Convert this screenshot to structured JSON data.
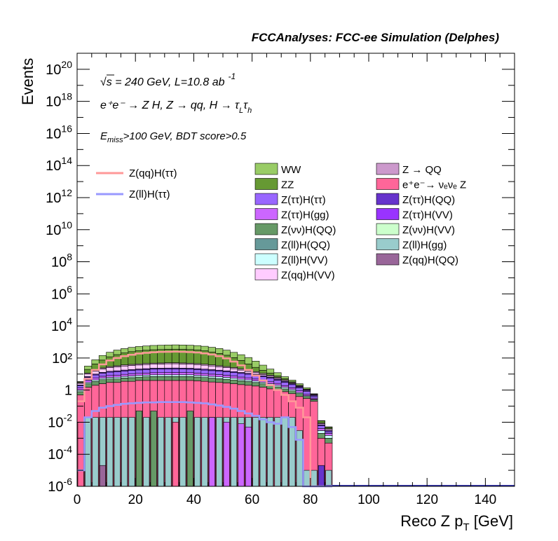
{
  "header": {
    "title": "FCCAnalyses: FCC-ee Simulation (Delphes)"
  },
  "annotations": {
    "energy_line": "√s = 240 GeV, L=10.8 ab",
    "energy_sup": "-1",
    "process_line": "e⁺e⁻ → Z H, Z → qq, H → τ",
    "process_sub_l": "L",
    "process_tau": "τ",
    "process_sub_h": "h",
    "cut_e": "E",
    "cut_sub": "miss",
    "cut_rest": ">100 GeV, BDT score>0.5"
  },
  "chart_data": {
    "type": "area",
    "title": "FCCAnalyses: FCC-ee Simulation (Delphes)",
    "xlabel_main": "Reco Z p",
    "xlabel_sub": "T",
    "xlabel_unit": " [GeV]",
    "ylabel": "Events",
    "xlim": [
      0,
      150
    ],
    "ylim": [
      1e-06,
      1e+21
    ],
    "yscale": "log",
    "grid": false,
    "legend_placement": "upper-right",
    "bin_width": 2.5,
    "x_ticks": [
      "0",
      "20",
      "40",
      "60",
      "80",
      "100",
      "120",
      "140"
    ],
    "y_tick_exponents": [
      "-6",
      "-4",
      "-2",
      "",
      "",
      "4",
      "6",
      "8",
      "10",
      "12",
      "14",
      "16",
      "18",
      "20"
    ],
    "y_tick_labels": [
      "10",
      "10",
      "10",
      "1",
      "10²",
      "10",
      "10",
      "10",
      "10",
      "10",
      "10",
      "10",
      "10",
      "10"
    ],
    "stack_backgrounds": [
      {
        "name": "WW",
        "color": "#99cc66",
        "envelope": [
          0.5,
          20,
          60,
          120,
          200,
          280,
          350,
          420,
          480,
          520,
          560,
          580,
          600,
          610,
          600,
          580,
          550,
          500,
          430,
          360,
          280,
          200,
          140,
          90,
          50,
          25,
          12,
          6,
          2.5,
          1.2,
          0.6,
          0.3,
          0.05,
          0.003,
          0.0008
        ]
      },
      {
        "name": "ZZ",
        "color": "#669933",
        "envelope": [
          0.3,
          8,
          25,
          50,
          90,
          130,
          170,
          210,
          240,
          260,
          280,
          290,
          300,
          305,
          300,
          290,
          270,
          240,
          200,
          160,
          120,
          80,
          50,
          25,
          12,
          6,
          3,
          1.5,
          0.8,
          0.3,
          0.1,
          0.05,
          0.02,
          0.003,
          0.0008
        ]
      },
      {
        "name": "Z(ττ)H(ττ)",
        "color": "#9966ff"
      },
      {
        "name": "Z(ττ)H(gg)",
        "color": "#cc66ff"
      },
      {
        "name": "Z(νν)H(QQ)",
        "color": "#669966"
      },
      {
        "name": "Z(ll)H(QQ)",
        "color": "#669999"
      },
      {
        "name": "Z(ll)H(VV)",
        "color": "#ccffff"
      },
      {
        "name": "Z(qq)H(VV)",
        "color": "#ffccff"
      },
      {
        "name": "Z → QQ",
        "color": "#cc99cc"
      },
      {
        "name": "e⁺e⁻→ νₑνₑ Z",
        "color": "#ff6699"
      },
      {
        "name": "Z(ττ)H(QQ)",
        "color": "#6633cc"
      },
      {
        "name": "Z(ττ)H(VV)",
        "color": "#9933ff"
      },
      {
        "name": "Z(νν)H(VV)",
        "color": "#ccffcc"
      },
      {
        "name": "Z(ll)H(gg)",
        "color": "#99cccc"
      },
      {
        "name": "Z(qq)H(QQ)",
        "color": "#996699"
      }
    ],
    "stack_layers": [
      {
        "color": "#ff6699",
        "values": [
          0.5,
          1.5,
          2,
          2.5,
          3,
          3,
          3.5,
          3.5,
          4,
          4,
          4,
          4,
          4,
          4,
          4,
          4,
          3.8,
          3.5,
          3.2,
          3,
          2.8,
          2.5,
          2.2,
          2,
          1.8,
          1.5,
          1.2,
          1,
          0.8,
          0.6,
          0.4,
          0.3,
          0.2,
          0.001,
          0.0005
        ]
      },
      {
        "color": "#669966",
        "values": [
          0.3,
          1,
          1.5,
          2,
          2,
          2,
          2.2,
          2.5,
          2.5,
          2.8,
          3,
          3,
          3,
          3,
          3,
          3,
          2.8,
          2.6,
          2.4,
          2.2,
          2,
          1.8,
          1.6,
          1.4,
          1.2,
          1,
          0.8,
          0.6,
          0.4,
          0.3,
          0.2,
          0.1,
          0.05,
          0.001,
          0.0005
        ]
      },
      {
        "color": "#ccffff",
        "values": [
          0.2,
          0.5,
          0.8,
          1,
          1.2,
          1.4,
          1.5,
          1.6,
          1.8,
          1.8,
          2,
          2,
          2,
          2,
          2,
          2,
          1.8,
          1.7,
          1.6,
          1.5,
          1.4,
          1.2,
          1,
          0.9,
          0.7,
          0.6,
          0.5,
          0.4,
          0.3,
          0.2,
          0.1,
          0.05,
          0.02,
          0.001,
          0.0005
        ]
      },
      {
        "color": "#cc66ff",
        "values": [
          0.4,
          1.2,
          1.5,
          1.8,
          2,
          2.2,
          2.4,
          2.6,
          2.8,
          3,
          3.2,
          3.3,
          3.4,
          3.5,
          3.4,
          3.3,
          3.1,
          2.9,
          2.7,
          2.5,
          2.2,
          2,
          1.7,
          1.5,
          1.2,
          1,
          0.8,
          0.6,
          0.4,
          0.3,
          0.2,
          0.1,
          0.05,
          0.001,
          0.0005
        ]
      },
      {
        "color": "#9966ff",
        "values": [
          0.5,
          2,
          3,
          4,
          5,
          5.5,
          6,
          6.5,
          7,
          7.5,
          8,
          8,
          8.2,
          8.2,
          8,
          7.8,
          7.4,
          7,
          6.5,
          6,
          5.5,
          5,
          4.5,
          4,
          3.4,
          2.8,
          2.2,
          1.6,
          1.2,
          0.8,
          0.5,
          0.3,
          0.1,
          0.002,
          0.0005
        ]
      },
      {
        "color": "#6633cc",
        "values": [
          0.2,
          0.8,
          1.2,
          1.5,
          1.8,
          2,
          2.2,
          2.4,
          2.6,
          2.8,
          3,
          3,
          3.1,
          3.2,
          3.1,
          3,
          2.9,
          2.7,
          2.5,
          2.3,
          2.1,
          1.9,
          1.6,
          1.4,
          1.2,
          1,
          0.8,
          0.6,
          0.4,
          0.3,
          0.2,
          0.1,
          0.05,
          0.001,
          0.0005
        ]
      },
      {
        "color": "#ffccff",
        "values": [
          0.5,
          3,
          5,
          8,
          10,
          12,
          14,
          15,
          16,
          17,
          18,
          19,
          20,
          20,
          19,
          18,
          17,
          15,
          13,
          11,
          9,
          7,
          5,
          3.5,
          2.5,
          1.5,
          1,
          0.6,
          0.4,
          0.2,
          0.1,
          0.05,
          0.02,
          0.001,
          0.0005
        ]
      },
      {
        "color": "#cc99cc",
        "values": [
          0.3,
          1.5,
          2.5,
          3.5,
          4.5,
          5,
          5.5,
          6,
          6.5,
          7,
          7,
          7,
          7.2,
          7.2,
          7,
          6.8,
          6.4,
          6,
          5.5,
          5,
          4.5,
          4,
          3.4,
          2.8,
          2.2,
          1.6,
          1.2,
          0.8,
          0.5,
          0.3,
          0.2,
          0.1,
          0.05,
          0.001,
          0.0005
        ]
      },
      {
        "color": "#669933",
        "values": [
          0.3,
          8,
          25,
          50,
          90,
          130,
          170,
          210,
          240,
          260,
          280,
          290,
          300,
          305,
          300,
          290,
          270,
          240,
          200,
          160,
          120,
          80,
          50,
          25,
          12,
          6,
          3,
          1.5,
          0.8,
          0.3,
          0.1,
          0.05,
          0.02,
          0.003,
          0.0008
        ]
      },
      {
        "color": "#99cc66",
        "values": [
          0.2,
          12,
          35,
          70,
          110,
          150,
          180,
          210,
          240,
          260,
          280,
          290,
          300,
          305,
          300,
          290,
          280,
          260,
          230,
          200,
          160,
          120,
          90,
          65,
          38,
          19,
          9,
          4.5,
          1.7,
          0.9,
          0.5,
          0.25,
          0.03,
          0.0005,
          0.0003
        ]
      }
    ],
    "single_bins_lower": [
      {
        "color": "#99cccc",
        "values": [
          1e-05,
          0.02,
          0.02,
          0.02,
          0.02,
          0.02,
          0.02,
          0.02,
          0.02,
          0.02,
          0.02,
          0.02,
          0.02,
          0.02,
          0.02,
          0.02,
          0.02,
          0.02,
          0.02,
          0.02,
          0.02,
          0.02,
          0.02,
          0.02,
          0.02,
          0.02,
          0.02,
          0.02,
          0.02,
          0.02,
          0.003,
          1e-05,
          1e-05,
          1e-05,
          1e-05
        ]
      },
      {
        "color": "#669966",
        "values": [
          0,
          0,
          0,
          0,
          0,
          0,
          0,
          0,
          0.05,
          0,
          0.05,
          0,
          0,
          0,
          0,
          0.05,
          0,
          0,
          0,
          0,
          0,
          0,
          0,
          0,
          0,
          0,
          0,
          0,
          0,
          0,
          0,
          0,
          0,
          0,
          0
        ]
      },
      {
        "color": "#ff6699",
        "values": [
          0.01,
          0,
          0,
          0,
          0,
          0,
          0,
          0,
          0,
          0,
          0,
          0,
          0,
          0.01,
          0,
          0,
          0,
          0,
          0,
          0,
          0,
          0,
          0,
          0,
          0,
          0,
          0,
          0,
          0,
          0,
          0,
          0,
          0,
          0,
          0
        ]
      },
      {
        "color": "#996699",
        "values": [
          0,
          0,
          0,
          2e-05,
          0,
          0,
          0,
          0,
          0,
          0,
          0,
          0,
          0,
          0,
          0,
          0,
          0,
          0,
          0,
          0,
          0,
          0,
          0,
          0,
          0,
          0,
          0,
          0,
          0,
          0,
          0,
          0,
          0,
          0,
          0
        ]
      },
      {
        "color": "#cc66ff",
        "values": [
          0,
          0,
          0,
          0,
          0,
          0,
          0,
          0,
          0,
          0,
          0,
          0,
          0,
          0,
          0,
          0,
          0,
          0,
          0.02,
          0,
          0.01,
          0,
          0.008,
          0.005,
          0,
          0,
          0,
          0,
          0,
          0,
          0,
          0,
          0,
          0,
          0
        ]
      },
      {
        "color": "#6633cc",
        "values": [
          0,
          0,
          0,
          0,
          0,
          0,
          0,
          0,
          0,
          0,
          0,
          0,
          0,
          0,
          0,
          0,
          0,
          0,
          0,
          0,
          0,
          0,
          0,
          0,
          0,
          0,
          0,
          0,
          0,
          0,
          0,
          0,
          0,
          2e-05,
          0
        ]
      }
    ],
    "signal_lines": [
      {
        "name": "Z(qq)H(ττ)",
        "color": "#ff9999",
        "values": [
          0.2,
          5,
          18,
          40,
          70,
          100,
          130,
          160,
          190,
          210,
          230,
          240,
          245,
          250,
          245,
          235,
          220,
          195,
          165,
          130,
          95,
          60,
          35,
          18,
          8,
          4,
          2,
          1,
          0.5,
          0.2,
          0.08,
          0.02,
          1e-06,
          1e-06,
          1e-06
        ]
      },
      {
        "name": "Z(ll)H(ττ)",
        "color": "#9999ff",
        "values": [
          1e-05,
          0.02,
          0.05,
          0.08,
          0.1,
          0.12,
          0.14,
          0.15,
          0.16,
          0.17,
          0.17,
          0.18,
          0.18,
          0.18,
          0.18,
          0.17,
          0.16,
          0.15,
          0.13,
          0.11,
          0.09,
          0.07,
          0.05,
          0.035,
          0.025,
          0.015,
          0.01,
          0.008,
          0.02,
          0.005,
          0.0008,
          1e-06,
          1e-06,
          1e-06,
          1e-06
        ]
      }
    ]
  }
}
